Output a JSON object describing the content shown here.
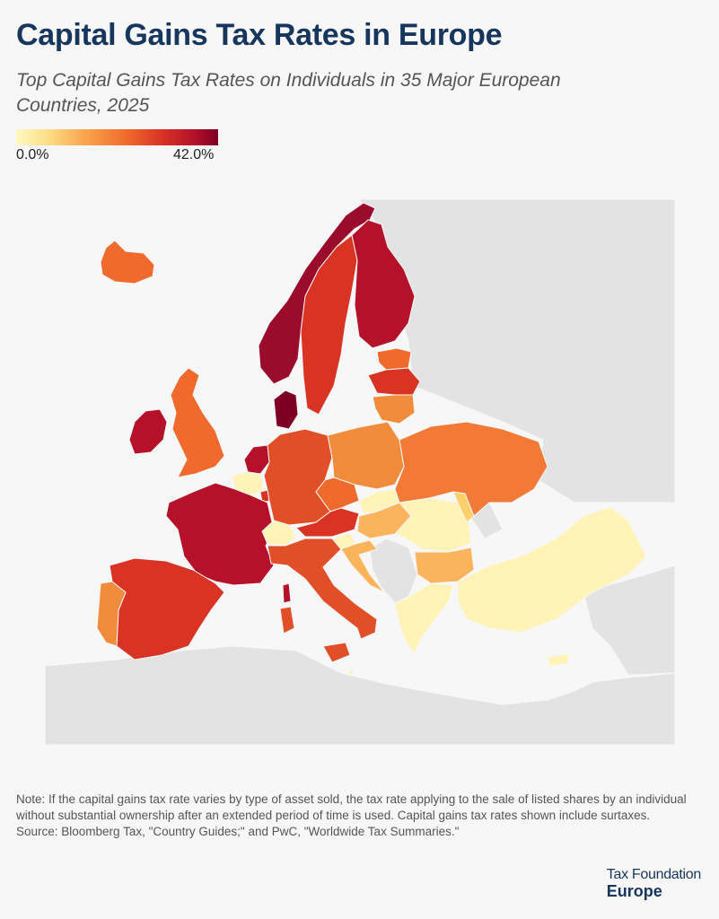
{
  "title": "Capital Gains Tax Rates in Europe",
  "subtitle": "Top Capital Gains Tax Rates on Individuals in 35 Major European Countries, 2025",
  "legend": {
    "min_label": "0.0%",
    "max_label": "42.0%",
    "min": 0.0,
    "max": 42.0
  },
  "colors": {
    "scale": [
      "#fff7c2",
      "#fde08a",
      "#f9a24b",
      "#ef6a2c",
      "#d93324",
      "#b5112a",
      "#7d0024"
    ],
    "non_member": "#e3e3e3",
    "sea": "#f7f7f7"
  },
  "note": "Note: If the capital gains tax rate varies by type of asset sold, the tax rate applying to the sale of listed shares by an individual without substantial ownership after an extended period of time is used. Capital gains tax rates shown include surtaxes.",
  "source": "Source: Bloomberg Tax, \"Country Guides;\" and PwC, \"Worldwide Tax Summaries.\"",
  "logo": {
    "line1": "Tax Foundation",
    "line2": "Europe"
  }
}
